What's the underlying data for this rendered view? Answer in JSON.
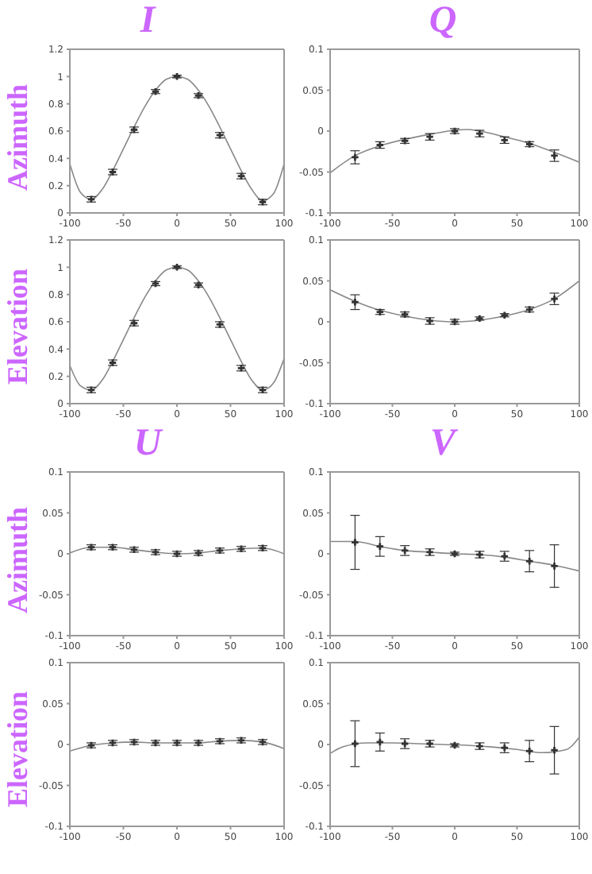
{
  "chart_data": [
    {
      "type": "scatter",
      "title": "I",
      "ylabel": "Azimuth",
      "xlim": [
        -100,
        100
      ],
      "xticks": [
        -100,
        -50,
        0,
        50,
        100
      ],
      "ylim": [
        0,
        1.2
      ],
      "yticks": [
        0,
        0.2,
        0.4,
        0.6,
        0.8,
        1,
        1.2
      ],
      "grid": false,
      "series": [
        {
          "marker": "cross",
          "color": "#333333",
          "x": [
            -80,
            -60,
            -40,
            -20,
            0,
            20,
            40,
            60,
            80
          ],
          "values": [
            0.1,
            0.3,
            0.61,
            0.89,
            1.0,
            0.86,
            0.57,
            0.27,
            0.08
          ],
          "errors": [
            0.02,
            0.02,
            0.02,
            0.015,
            0.01,
            0.015,
            0.02,
            0.02,
            0.02
          ]
        },
        {
          "type": "line",
          "color": "#888888",
          "x": [
            -100,
            -90,
            -80,
            -70,
            -60,
            -50,
            -40,
            -30,
            -20,
            -10,
            0,
            10,
            20,
            30,
            40,
            50,
            60,
            70,
            80,
            90,
            100
          ],
          "values": [
            0.36,
            0.15,
            0.1,
            0.17,
            0.31,
            0.47,
            0.63,
            0.78,
            0.9,
            0.98,
            1.0,
            0.98,
            0.9,
            0.78,
            0.63,
            0.47,
            0.31,
            0.17,
            0.09,
            0.14,
            0.36
          ]
        }
      ]
    },
    {
      "type": "scatter",
      "title": "Q",
      "xlim": [
        -100,
        100
      ],
      "xticks": [
        -100,
        -50,
        0,
        50,
        100
      ],
      "ylim": [
        -0.1,
        0.1
      ],
      "yticks": [
        -0.1,
        -0.05,
        0,
        0.05,
        0.1
      ],
      "grid": false,
      "series": [
        {
          "marker": "cross",
          "color": "#333333",
          "x": [
            -80,
            -60,
            -40,
            -20,
            0,
            20,
            40,
            60,
            80
          ],
          "values": [
            -0.032,
            -0.017,
            -0.012,
            -0.007,
            0,
            -0.003,
            -0.011,
            -0.016,
            -0.03
          ],
          "errors": [
            0.008,
            0.004,
            0.003,
            0.004,
            0.003,
            0.004,
            0.004,
            0.003,
            0.007
          ]
        },
        {
          "type": "line",
          "color": "#888888",
          "x": [
            -100,
            -80,
            -60,
            -40,
            -20,
            0,
            10,
            20,
            40,
            60,
            80,
            100
          ],
          "values": [
            -0.051,
            -0.03,
            -0.018,
            -0.01,
            -0.004,
            0.001,
            0.002,
            0.0,
            -0.007,
            -0.015,
            -0.026,
            -0.038
          ]
        }
      ]
    },
    {
      "type": "scatter",
      "ylabel": "Elevation",
      "xlim": [
        -100,
        100
      ],
      "xticks": [
        -100,
        -50,
        0,
        50,
        100
      ],
      "ylim": [
        0,
        1.2
      ],
      "yticks": [
        0,
        0.2,
        0.4,
        0.6,
        0.8,
        1,
        1.2
      ],
      "grid": false,
      "series": [
        {
          "marker": "cross",
          "color": "#333333",
          "x": [
            -80,
            -60,
            -40,
            -20,
            0,
            20,
            40,
            60,
            80
          ],
          "values": [
            0.1,
            0.3,
            0.59,
            0.88,
            1.0,
            0.87,
            0.58,
            0.26,
            0.1
          ],
          "errors": [
            0.02,
            0.02,
            0.02,
            0.015,
            0.01,
            0.015,
            0.02,
            0.02,
            0.02
          ]
        },
        {
          "type": "line",
          "color": "#888888",
          "x": [
            -100,
            -90,
            -80,
            -70,
            -60,
            -50,
            -40,
            -30,
            -20,
            -10,
            0,
            10,
            20,
            30,
            40,
            50,
            60,
            70,
            80,
            90,
            100
          ],
          "values": [
            0.28,
            0.13,
            0.1,
            0.17,
            0.31,
            0.47,
            0.63,
            0.78,
            0.9,
            0.98,
            1.0,
            0.98,
            0.9,
            0.78,
            0.63,
            0.47,
            0.31,
            0.17,
            0.1,
            0.15,
            0.33
          ]
        }
      ]
    },
    {
      "type": "scatter",
      "xlim": [
        -100,
        100
      ],
      "xticks": [
        -100,
        -50,
        0,
        50,
        100
      ],
      "ylim": [
        -0.1,
        0.1
      ],
      "yticks": [
        -0.1,
        -0.05,
        0,
        0.05,
        0.1
      ],
      "grid": false,
      "series": [
        {
          "marker": "cross",
          "color": "#333333",
          "x": [
            -80,
            -60,
            -40,
            -20,
            0,
            20,
            40,
            60,
            80
          ],
          "values": [
            0.024,
            0.012,
            0.009,
            0.001,
            0,
            0.004,
            0.008,
            0.015,
            0.028
          ],
          "errors": [
            0.009,
            0.003,
            0.003,
            0.004,
            0.003,
            0.002,
            0.002,
            0.003,
            0.007
          ]
        },
        {
          "type": "line",
          "color": "#888888",
          "x": [
            -100,
            -80,
            -60,
            -40,
            -20,
            0,
            20,
            40,
            60,
            80,
            100
          ],
          "values": [
            0.039,
            0.025,
            0.014,
            0.007,
            0.002,
            0,
            0.002,
            0.007,
            0.015,
            0.028,
            0.05
          ]
        }
      ]
    },
    {
      "type": "scatter",
      "title": "U",
      "ylabel": "Azimuth",
      "xlim": [
        -100,
        100
      ],
      "xticks": [
        -100,
        -50,
        0,
        50,
        100
      ],
      "ylim": [
        -0.1,
        0.1
      ],
      "yticks": [
        -0.1,
        -0.05,
        0,
        0.05,
        0.1
      ],
      "grid": false,
      "series": [
        {
          "marker": "cross",
          "color": "#333333",
          "x": [
            -80,
            -60,
            -40,
            -20,
            0,
            20,
            40,
            60,
            80
          ],
          "values": [
            0.008,
            0.008,
            0.005,
            0.002,
            0,
            0.001,
            0.004,
            0.006,
            0.007
          ],
          "errors": [
            0.003,
            0.003,
            0.003,
            0.003,
            0.003,
            0.003,
            0.003,
            0.003,
            0.003
          ]
        },
        {
          "type": "line",
          "color": "#888888",
          "x": [
            -100,
            -80,
            -60,
            -40,
            -20,
            0,
            20,
            40,
            60,
            80,
            100
          ],
          "values": [
            0.001,
            0.008,
            0.008,
            0.005,
            0.002,
            0,
            0.001,
            0.004,
            0.006,
            0.007,
            0
          ]
        }
      ]
    },
    {
      "type": "scatter",
      "title": "V",
      "xlim": [
        -100,
        100
      ],
      "xticks": [
        -100,
        -50,
        0,
        50,
        100
      ],
      "ylim": [
        -0.1,
        0.1
      ],
      "yticks": [
        -0.1,
        -0.05,
        0,
        0.05,
        0.1
      ],
      "grid": false,
      "series": [
        {
          "marker": "cross",
          "color": "#333333",
          "x": [
            -80,
            -60,
            -40,
            -20,
            0,
            20,
            40,
            60,
            80
          ],
          "values": [
            0.014,
            0.009,
            0.004,
            0.002,
            0,
            -0.001,
            -0.003,
            -0.009,
            -0.015
          ],
          "errors": [
            0.033,
            0.012,
            0.006,
            0.004,
            0.002,
            0.004,
            0.006,
            0.013,
            0.026
          ]
        },
        {
          "type": "line",
          "color": "#888888",
          "x": [
            -100,
            -80,
            -60,
            -40,
            -20,
            0,
            20,
            40,
            60,
            80,
            100
          ],
          "values": [
            0.015,
            0.015,
            0.009,
            0.004,
            0.002,
            0,
            -0.001,
            -0.004,
            -0.009,
            -0.014,
            -0.021
          ]
        }
      ]
    },
    {
      "type": "scatter",
      "ylabel": "Elevation",
      "xlim": [
        -100,
        100
      ],
      "xticks": [
        -100,
        -50,
        0,
        50,
        100
      ],
      "ylim": [
        -0.1,
        0.1
      ],
      "yticks": [
        -0.1,
        -0.05,
        0,
        0.05,
        0.1
      ],
      "grid": false,
      "series": [
        {
          "marker": "cross",
          "color": "#333333",
          "x": [
            -80,
            -60,
            -40,
            -20,
            0,
            20,
            40,
            60,
            80
          ],
          "values": [
            -0.001,
            0.002,
            0.003,
            0.002,
            0.002,
            0.002,
            0.004,
            0.005,
            0.003
          ],
          "errors": [
            0.003,
            0.003,
            0.003,
            0.003,
            0.003,
            0.003,
            0.003,
            0.003,
            0.003
          ]
        },
        {
          "type": "line",
          "color": "#888888",
          "x": [
            -100,
            -80,
            -60,
            -40,
            -20,
            0,
            20,
            40,
            60,
            80,
            100
          ],
          "values": [
            -0.008,
            -0.001,
            0.002,
            0.003,
            0.002,
            0.002,
            0.002,
            0.004,
            0.005,
            0.003,
            -0.005
          ]
        }
      ]
    },
    {
      "type": "scatter",
      "xlim": [
        -100,
        100
      ],
      "xticks": [
        -100,
        -50,
        0,
        50,
        100
      ],
      "ylim": [
        -0.1,
        0.1
      ],
      "yticks": [
        -0.1,
        -0.05,
        0,
        0.05,
        0.1
      ],
      "grid": false,
      "series": [
        {
          "marker": "cross",
          "color": "#333333",
          "x": [
            -80,
            -60,
            -40,
            -20,
            0,
            20,
            40,
            60,
            80
          ],
          "values": [
            0.001,
            0.003,
            0.001,
            0.001,
            -0.001,
            -0.002,
            -0.004,
            -0.008,
            -0.007
          ],
          "errors": [
            0.028,
            0.011,
            0.006,
            0.004,
            0.002,
            0.004,
            0.006,
            0.013,
            0.029
          ]
        },
        {
          "type": "line",
          "color": "#888888",
          "x": [
            -100,
            -90,
            -70,
            -50,
            -30,
            -10,
            10,
            30,
            50,
            70,
            90,
            100
          ],
          "values": [
            -0.011,
            -0.003,
            0.002,
            0.002,
            0.001,
            0,
            -0.001,
            -0.003,
            -0.006,
            -0.01,
            -0.006,
            0.009
          ]
        }
      ]
    }
  ]
}
